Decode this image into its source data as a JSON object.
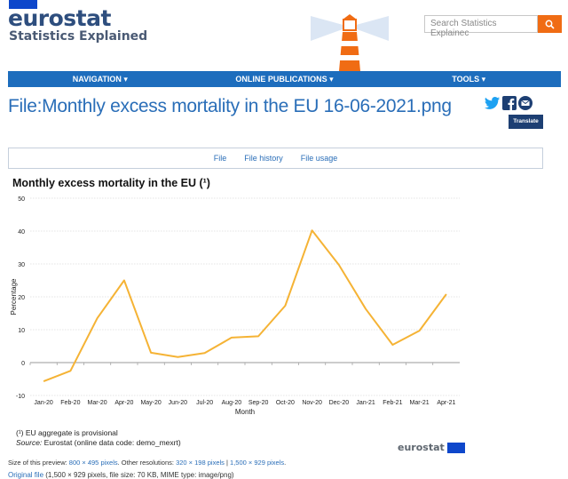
{
  "header": {
    "logo_word": "eurostat",
    "logo_sub": "Statistics Explained",
    "search_placeholder": "Search Statistics Explainec"
  },
  "nav": {
    "items": [
      "NAVIGATION ▾",
      "ONLINE PUBLICATIONS ▾",
      "TOOLS ▾"
    ]
  },
  "page": {
    "title": "File:Monthly excess mortality in the EU 16-06-2021.png",
    "translate_label": "Translate"
  },
  "tabs": [
    "File",
    "File history",
    "File usage"
  ],
  "chart_data": {
    "type": "line",
    "title": "Monthly excess mortality in the EU (¹)",
    "xlabel": "Month",
    "ylabel": "Percentage",
    "ylim": [
      -10,
      50
    ],
    "yticks": [
      -10,
      0,
      10,
      20,
      30,
      40,
      50
    ],
    "categories": [
      "Jan-20",
      "Feb-20",
      "Mar-20",
      "Apr-20",
      "May-20",
      "Jun-20",
      "Jul-20",
      "Aug-20",
      "Sep-20",
      "Oct-20",
      "Nov-20",
      "Dec-20",
      "Jan-21",
      "Feb-21",
      "Mar-21",
      "Apr-21"
    ],
    "series": [
      {
        "values": [
          -5.7,
          -2.5,
          13.5,
          25.0,
          3.0,
          1.7,
          2.9,
          7.6,
          8.0,
          17.3,
          40.2,
          29.7,
          16.3,
          5.4,
          9.7,
          20.8
        ]
      }
    ],
    "grid": "horizontal",
    "color": "#f5b335"
  },
  "footnotes": {
    "note1": "(¹) EU aggregate is provisional",
    "source_label": "Source:",
    "source_text": " Eurostat (online data code: demo_mexrt)",
    "brand": "eurostat"
  },
  "file_info": {
    "preview_label": "Size of this preview: ",
    "preview_size": "800 × 495 pixels",
    "other_label": ". Other resolutions: ",
    "res1": "320 × 198 pixels",
    "sep": " | ",
    "res2": "1,500 × 929 pixels",
    "end": ".",
    "original_link": "Original file",
    "original_meta": " (1,500 × 929 pixels, file size: 70 KB, MIME type: image/png)"
  }
}
